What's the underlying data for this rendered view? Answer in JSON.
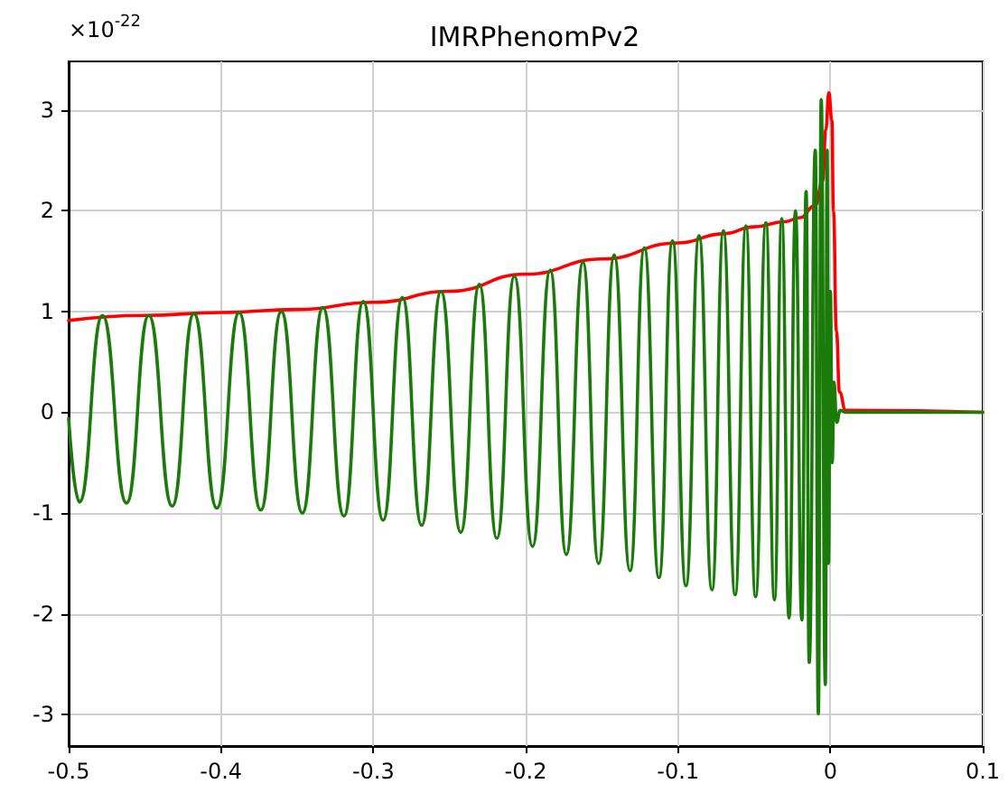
{
  "chart_data": {
    "type": "line",
    "title": "IMRPhenomPv2",
    "annotations": [
      "×10$^{-22}$"
    ],
    "xlim": [
      -0.5,
      0.1
    ],
    "xticks": [
      -0.5,
      -0.4,
      -0.3,
      -0.2,
      -0.1,
      0,
      0.1
    ],
    "ylim": [
      -3.31,
      3.48
    ],
    "yticks": [
      -3,
      -2,
      -1,
      0,
      1,
      2,
      3
    ],
    "grid": true,
    "marker": "none",
    "line_style": "solid",
    "series": [
      {
        "color": "#ff0000",
        "x": [
          -0.5,
          -0.45,
          -0.4,
          -0.35,
          -0.3,
          -0.25,
          -0.2,
          -0.15,
          -0.1,
          -0.07,
          -0.05,
          -0.03,
          -0.02,
          -0.01,
          -0.005,
          -0.003,
          -0.001,
          0.001,
          0.002,
          0.004,
          0.006,
          0.01,
          0.1
        ],
        "values": [
          0.91,
          0.96,
          0.99,
          1.02,
          1.09,
          1.2,
          1.37,
          1.52,
          1.68,
          1.77,
          1.84,
          1.89,
          1.93,
          2.05,
          2.3,
          2.8,
          3.17,
          2.9,
          2.0,
          0.8,
          0.2,
          0.02,
          0
        ]
      },
      {
        "color": "#1a7a0a",
        "x": [
          -0.5,
          -0.4929,
          -0.4778,
          -0.462,
          -0.4474,
          -0.432,
          -0.4178,
          -0.4027,
          -0.3881,
          -0.3739,
          -0.3604,
          -0.3466,
          -0.3331,
          -0.3193,
          -0.3066,
          -0.2936,
          -0.2809,
          -0.2683,
          -0.2556,
          -0.2426,
          -0.2304,
          -0.2189,
          -0.2074,
          -0.1955,
          -0.1839,
          -0.1733,
          -0.1624,
          -0.1521,
          -0.1419,
          -0.1315,
          -0.1221,
          -0.1125,
          -0.1036,
          -0.0948,
          -0.0862,
          -0.0777,
          -0.0702,
          -0.0625,
          -0.0554,
          -0.0491,
          -0.0423,
          -0.0367,
          -0.0319,
          -0.0271,
          -0.0229,
          -0.0187,
          -0.0159,
          -0.0139,
          -0.0099,
          -0.0079,
          -0.006,
          -0.0033,
          -0.0021,
          -0.0012,
          0.0,
          0.0012,
          0.0024,
          0.0041,
          0.0065,
          0.0101,
          0.1
        ],
        "values": [
          -0.06,
          -0.89,
          0.96,
          -0.9,
          0.96,
          -0.93,
          0.98,
          -0.95,
          0.99,
          -0.97,
          1.0,
          -1.0,
          1.04,
          -1.03,
          1.1,
          -1.07,
          1.14,
          -1.12,
          1.2,
          -1.19,
          1.27,
          -1.25,
          1.35,
          -1.33,
          1.41,
          -1.41,
          1.49,
          -1.5,
          1.56,
          -1.57,
          1.63,
          -1.64,
          1.7,
          -1.72,
          1.75,
          -1.76,
          1.8,
          -1.81,
          1.85,
          -1.83,
          1.88,
          -1.86,
          1.92,
          -2.04,
          2.0,
          -2.06,
          2.19,
          -2.48,
          2.6,
          -2.99,
          3.1,
          -2.7,
          2.6,
          -1.5,
          1.2,
          -0.5,
          0.3,
          -0.1,
          0.02,
          0,
          0
        ]
      }
    ]
  }
}
